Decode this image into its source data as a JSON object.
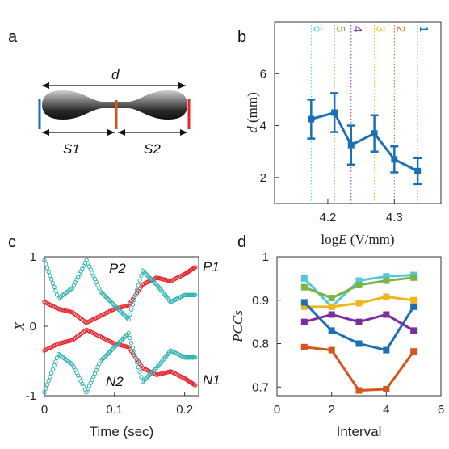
{
  "panels": {
    "a": "a",
    "b": "b",
    "c": "c",
    "d": "d"
  },
  "panel_a": {
    "d_label": "d",
    "s1": "S1",
    "s2": "S2"
  },
  "chart_data": [
    {
      "panel": "b",
      "type": "line",
      "xlabel_prefix": "log",
      "xlabel_var": "E",
      "xlabel_unit": "(V/mm)",
      "ylabel_var": "d",
      "ylabel_unit": "(mm)",
      "xlim": [
        4.12,
        4.37
      ],
      "ylim": [
        1,
        8
      ],
      "xticks": [
        4.2,
        4.3
      ],
      "xtick_labels": [
        "4.2",
        "4.3"
      ],
      "yticks": [
        2,
        4,
        6
      ],
      "ytick_labels": [
        "2",
        "4",
        "6"
      ],
      "x": [
        4.175,
        4.21,
        4.235,
        4.27,
        4.3,
        4.335
      ],
      "y": [
        4.25,
        4.5,
        3.25,
        3.7,
        2.7,
        2.25
      ],
      "err": [
        0.75,
        0.75,
        0.75,
        0.7,
        0.5,
        0.5
      ],
      "color": "#1a6fb5",
      "vlines": [
        {
          "label": "6",
          "x": 4.175,
          "color": "#4ec9e0"
        },
        {
          "label": "5",
          "x": 4.21,
          "color": "#7cb342"
        },
        {
          "label": "4",
          "x": 4.235,
          "color": "#7b2f9e"
        },
        {
          "label": "3",
          "x": 4.27,
          "color": "#f2b51c"
        },
        {
          "label": "2",
          "x": 4.3,
          "color": "#d4561c"
        },
        {
          "label": "1",
          "x": 4.335,
          "color": "#1a6fb5"
        }
      ]
    },
    {
      "panel": "c",
      "type": "scatter",
      "xlabel": "Time (sec)",
      "ylabel": "X",
      "xlim": [
        0,
        0.22
      ],
      "ylim": [
        -1,
        1
      ],
      "xticks": [
        0,
        0.1,
        0.2
      ],
      "xtick_labels": [
        "0",
        "0.1",
        "0.2"
      ],
      "yticks": [
        -1,
        0,
        1
      ],
      "ytick_labels": [
        "-1",
        "0",
        "1"
      ],
      "series_labels": [
        "P1",
        "P2",
        "N1",
        "N2"
      ],
      "series": [
        {
          "color": "#e8242c",
          "x": [
            0,
            0.02,
            0.04,
            0.06,
            0.08,
            0.1,
            0.12,
            0.14,
            0.16,
            0.18,
            0.2,
            0.215
          ],
          "y": [
            0.35,
            0.25,
            0.2,
            0.05,
            0.15,
            0.25,
            0.3,
            0.6,
            0.7,
            0.65,
            0.75,
            0.85
          ]
        },
        {
          "color": "#2db3b0",
          "x": [
            0,
            0.02,
            0.04,
            0.06,
            0.08,
            0.1,
            0.12,
            0.14,
            0.16,
            0.18,
            0.2,
            0.215
          ],
          "y": [
            0.95,
            0.4,
            0.55,
            0.95,
            0.5,
            0.3,
            0.1,
            0.8,
            0.6,
            0.35,
            0.45,
            0.45
          ]
        },
        {
          "color": "#e8242c",
          "x": [
            0,
            0.02,
            0.04,
            0.06,
            0.08,
            0.1,
            0.12,
            0.14,
            0.16,
            0.18,
            0.2,
            0.215
          ],
          "y": [
            -0.35,
            -0.25,
            -0.2,
            -0.05,
            -0.15,
            -0.25,
            -0.3,
            -0.6,
            -0.7,
            -0.65,
            -0.75,
            -0.85
          ]
        },
        {
          "color": "#2db3b0",
          "x": [
            0,
            0.02,
            0.04,
            0.06,
            0.08,
            0.1,
            0.12,
            0.14,
            0.16,
            0.18,
            0.2,
            0.215
          ],
          "y": [
            -0.95,
            -0.4,
            -0.55,
            -0.95,
            -0.5,
            -0.3,
            -0.1,
            -0.8,
            -0.6,
            -0.35,
            -0.45,
            -0.45
          ]
        }
      ]
    },
    {
      "panel": "d",
      "type": "line",
      "xlabel": "Interval",
      "ylabel": "PCCs",
      "xlim": [
        0,
        6
      ],
      "ylim": [
        0.68,
        1.0
      ],
      "xticks": [
        0,
        2,
        4,
        6
      ],
      "xtick_labels": [
        "0",
        "2",
        "4",
        "6"
      ],
      "yticks": [
        0.7,
        0.8,
        0.9,
        1.0
      ],
      "ytick_labels": [
        "0.7",
        "0.8",
        "0.9",
        "1"
      ],
      "categories": [
        1,
        2,
        3,
        4,
        5
      ],
      "series": [
        {
          "color": "#4ec9e0",
          "values": [
            0.95,
            0.885,
            0.945,
            0.955,
            0.958
          ]
        },
        {
          "color": "#7cb342",
          "values": [
            0.93,
            0.905,
            0.935,
            0.945,
            0.952
          ]
        },
        {
          "color": "#f2b51c",
          "values": [
            0.885,
            0.885,
            0.893,
            0.908,
            0.9
          ]
        },
        {
          "color": "#1a6fb5",
          "values": [
            0.895,
            0.83,
            0.8,
            0.785,
            0.885
          ]
        },
        {
          "color": "#7b2f9e",
          "values": [
            0.85,
            0.867,
            0.85,
            0.867,
            0.83
          ]
        },
        {
          "color": "#d4561c",
          "values": [
            0.792,
            0.785,
            0.692,
            0.695,
            0.782
          ]
        }
      ]
    }
  ]
}
